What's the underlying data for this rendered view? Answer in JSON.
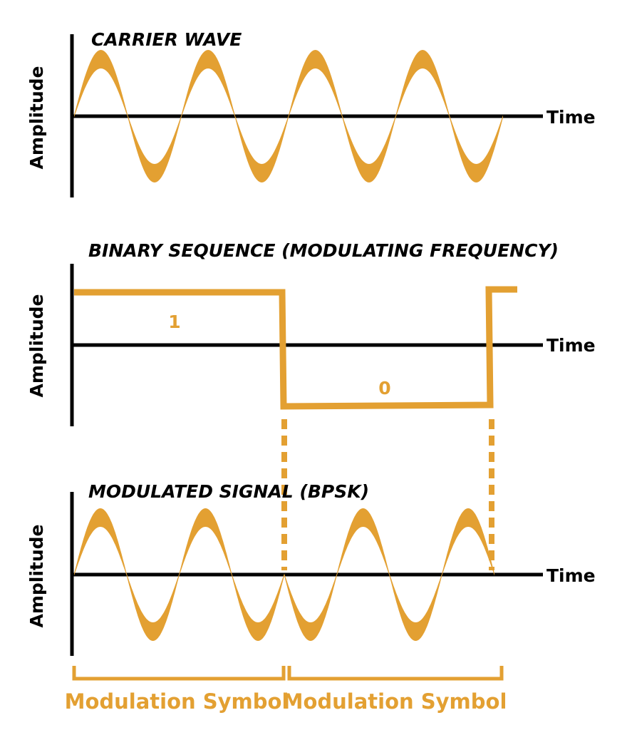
{
  "colors": {
    "signal": "#E3A032",
    "axis": "#000000",
    "background": "#FFFFFF"
  },
  "panels": [
    {
      "title": "CARRIER WAVE",
      "y_label": "Amplitude",
      "x_label": "Time",
      "signal": "sine",
      "cycles": 4
    },
    {
      "title": "BINARY SEQUENCE (MODULATING FREQUENCY)",
      "y_label": "Amplitude",
      "x_label": "Time",
      "signal": "square",
      "bits": [
        "1",
        "0"
      ]
    },
    {
      "title": "MODULATED SIGNAL (BPSK)",
      "y_label": "Amplitude",
      "x_label": "Time",
      "signal": "bpsk",
      "cycles": 4,
      "phase_shift_degrees": 180
    }
  ],
  "symbols": [
    {
      "label": "Modulation Symbol"
    },
    {
      "label": "Modulation Symbol"
    }
  ]
}
